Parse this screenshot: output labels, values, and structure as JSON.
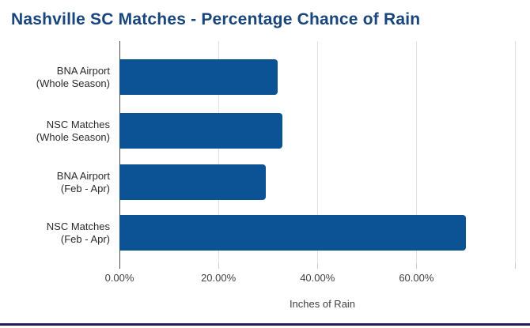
{
  "page": {
    "title": "Nashville SC Matches - Percentage Chance of Rain"
  },
  "chart_data": {
    "type": "bar",
    "orientation": "horizontal",
    "title": "Nashville SC Matches - Percentage Chance of Rain",
    "xlabel": "Inches of Rain",
    "ylabel": "",
    "xlim": [
      0,
      82
    ],
    "grid": "vertical-gridlines-only",
    "legend": "none",
    "bar_color": "#0b5394",
    "categories": [
      {
        "line1": "BNA Airport",
        "line2": "(Whole Season)"
      },
      {
        "line1": "NSC Matches",
        "line2": "(Whole Season)"
      },
      {
        "line1": "BNA Airport",
        "line2": "(Feb - Apr)"
      },
      {
        "line1": "NSC Matches",
        "line2": "(Feb - Apr)"
      }
    ],
    "values": [
      32,
      33,
      29.5,
      70
    ],
    "values_unit": "percent",
    "x_ticks": [
      {
        "value": 0,
        "label": "0.00%"
      },
      {
        "value": 20,
        "label": "20.00%"
      },
      {
        "value": 40,
        "label": "40.00%"
      },
      {
        "value": 60,
        "label": "60.00%"
      },
      {
        "value": 80,
        "label": ""
      }
    ]
  },
  "colors": {
    "title_text": "#17457c",
    "bar": "#0b5394",
    "gridline": "#e2e2e2",
    "axis_line": "#4d4d4d",
    "tick_text": "#3f3f3f",
    "category_text": "#2b2b2b",
    "axis_title_text": "#3f3f3f",
    "bottom_rule": "#211e55",
    "background": "#ffffff"
  }
}
